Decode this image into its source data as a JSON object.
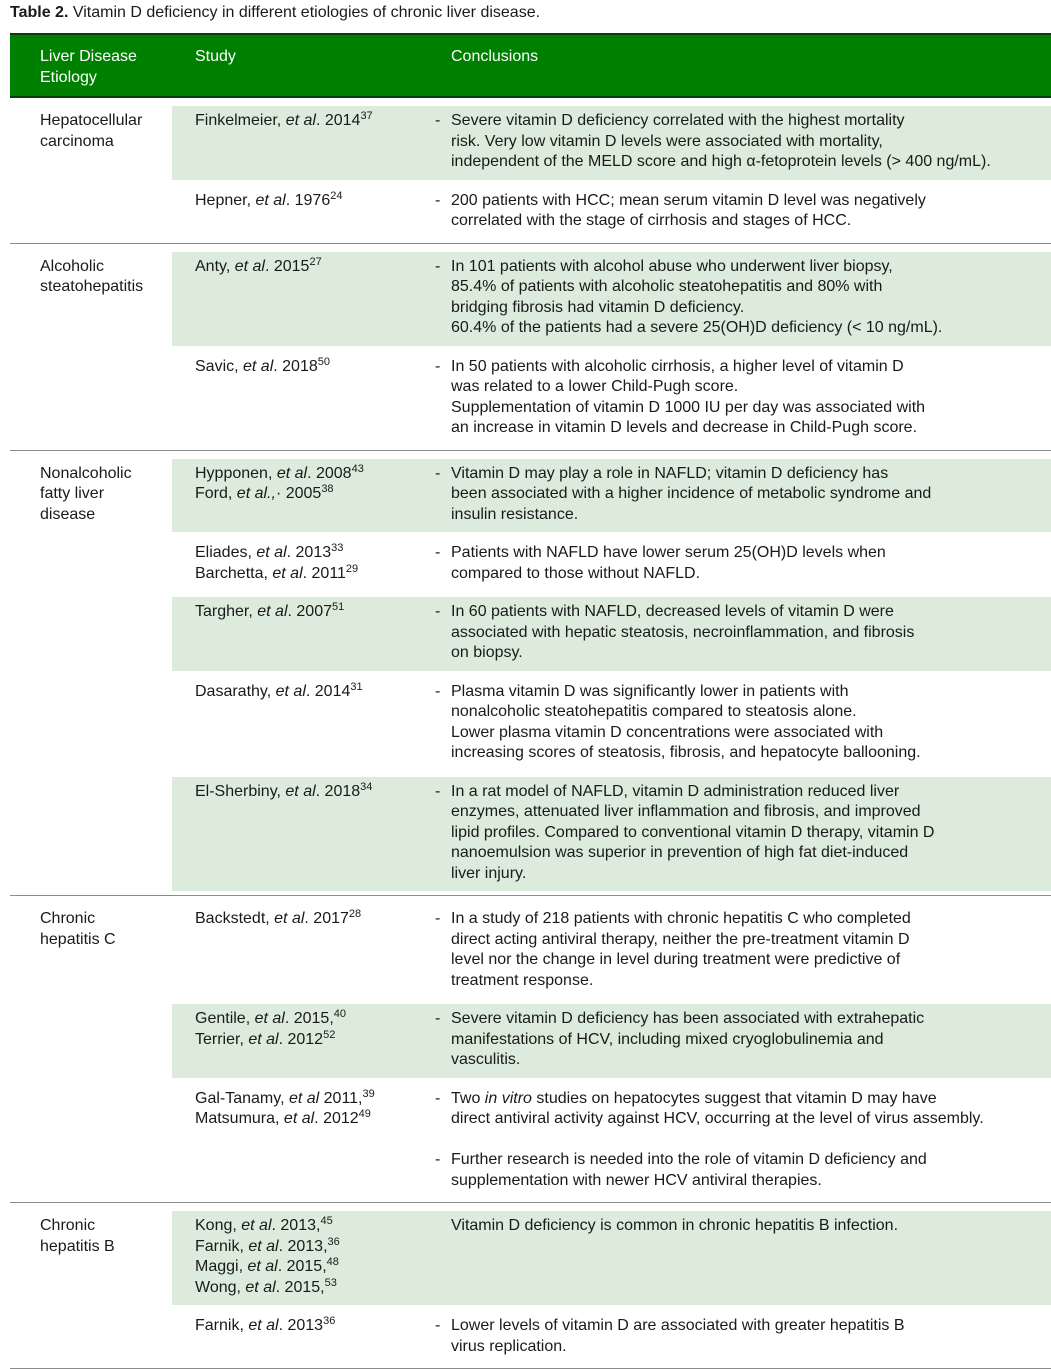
{
  "caption": {
    "label": "Table 2.",
    "text": " Vitamin D deficiency in different etiologies of chronic liver disease."
  },
  "header": {
    "etiology": [
      "Liver Disease",
      "Etiology"
    ],
    "study": "Study",
    "conclusions": "Conclusions"
  },
  "colors": {
    "header_bg": "#008000",
    "shade": "#dcebdc"
  },
  "groups": [
    {
      "etiology": [
        "Hepatocellular",
        "carcinoma"
      ],
      "rows": [
        {
          "shaded": true,
          "study": [
            [
              "Finkelmeier, ",
              {
                "i": "et al"
              },
              ". 2014",
              {
                "sup": "37"
              }
            ]
          ],
          "conclusions": [
            {
              "dash": true,
              "lines": [
                "Severe vitamin D deficiency correlated with the highest mortality",
                "risk. Very low vitamin D levels were associated with mortality,",
                "independent of the MELD score and high α-fetoprotein levels (> 400 ng/mL)."
              ]
            }
          ]
        },
        {
          "shaded": false,
          "study": [
            [
              "Hepner, ",
              {
                "i": "et al"
              },
              ". 1976",
              {
                "sup": "24"
              }
            ]
          ],
          "conclusions": [
            {
              "dash": true,
              "lines": [
                "200 patients with HCC; mean serum vitamin D level was negatively",
                "correlated with the stage of cirrhosis and stages of HCC."
              ]
            }
          ]
        }
      ]
    },
    {
      "etiology": [
        "Alcoholic",
        "steatohepatitis"
      ],
      "rows": [
        {
          "shaded": true,
          "study": [
            [
              "Anty, ",
              {
                "i": "et al"
              },
              ". 2015",
              {
                "sup": "27"
              }
            ]
          ],
          "conclusions": [
            {
              "dash": true,
              "lines": [
                "In 101 patients with alcohol abuse who underwent liver biopsy,",
                "85.4% of patients with alcoholic steatohepatitis and 80% with",
                "bridging fibrosis had vitamin D deficiency.",
                "60.4% of the patients had a severe 25(OH)D deficiency (< 10 ng/mL)."
              ]
            }
          ]
        },
        {
          "shaded": false,
          "study": [
            [
              "Savic, ",
              {
                "i": "et al"
              },
              ". 2018",
              {
                "sup": "50"
              }
            ]
          ],
          "conclusions": [
            {
              "dash": true,
              "lines": [
                "In 50 patients with alcoholic cirrhosis, a higher level of vitamin D",
                "was related to a lower Child-Pugh score.",
                "Supplementation of vitamin D 1000 IU per day was associated with",
                "an increase in vitamin D levels and decrease in Child-Pugh score."
              ]
            }
          ]
        }
      ]
    },
    {
      "etiology": [
        "Nonalcoholic",
        "fatty liver",
        "disease"
      ],
      "rows": [
        {
          "shaded": true,
          "study": [
            [
              "Hypponen, ",
              {
                "i": "et al"
              },
              ". 2008",
              {
                "sup": "43"
              }
            ],
            [
              "Ford, ",
              {
                "i": "et al.,"
              },
              "· 2005",
              {
                "sup": "38"
              }
            ]
          ],
          "conclusions": [
            {
              "dash": true,
              "lines": [
                "Vitamin D may play a role in NAFLD; vitamin D deficiency has",
                "been associated with a higher incidence of metabolic syndrome and",
                "insulin resistance."
              ]
            }
          ]
        },
        {
          "shaded": false,
          "study": [
            [
              "Eliades, ",
              {
                "i": "et al"
              },
              ". 2013",
              {
                "sup": "33"
              }
            ],
            [
              "Barchetta, ",
              {
                "i": "et al"
              },
              ". 2011",
              {
                "sup": "29"
              }
            ]
          ],
          "conclusions": [
            {
              "dash": true,
              "lines": [
                "Patients with NAFLD have lower serum 25(OH)D levels when",
                "compared to those without NAFLD."
              ]
            }
          ]
        },
        {
          "shaded": true,
          "study": [
            [
              "Targher, ",
              {
                "i": "et al"
              },
              ". 2007",
              {
                "sup": "51"
              }
            ]
          ],
          "conclusions": [
            {
              "dash": true,
              "lines": [
                "In 60 patients with NAFLD, decreased levels of vitamin D were",
                "associated with  hepatic steatosis, necroinflammation, and fibrosis",
                "on biopsy."
              ]
            }
          ]
        },
        {
          "shaded": false,
          "study": [
            [
              "Dasarathy, ",
              {
                "i": "et al"
              },
              ". 2014",
              {
                "sup": "31"
              }
            ]
          ],
          "conclusions": [
            {
              "dash": true,
              "lines": [
                "Plasma vitamin D was significantly lower in patients with",
                "nonalcoholic steatohepatitis compared to steatosis alone.",
                "Lower plasma vitamin D concentrations were associated with",
                "increasing scores of steatosis, fibrosis, and hepatocyte ballooning."
              ]
            }
          ]
        },
        {
          "shaded": true,
          "study": [
            [
              "El-Sherbiny, ",
              {
                "i": "et al"
              },
              ". 2018",
              {
                "sup": "34"
              }
            ]
          ],
          "conclusions": [
            {
              "dash": true,
              "lines": [
                "In a rat model of NAFLD, vitamin D administration reduced liver",
                "enzymes, attenuated liver inflammation and fibrosis, and improved",
                "lipid profiles.  Compared to conventional vitamin D therapy, vitamin D",
                "nanoemulsion was superior in prevention of high fat diet-induced",
                "liver injury."
              ]
            }
          ]
        }
      ]
    },
    {
      "etiology": [
        "Chronic",
        "hepatitis C"
      ],
      "rows": [
        {
          "shaded": false,
          "study": [
            [
              "Backstedt, ",
              {
                "i": "et al"
              },
              ". 2017",
              {
                "sup": "28"
              }
            ]
          ],
          "conclusions": [
            {
              "dash": true,
              "lines": [
                "In a study of 218 patients with chronic hepatitis C who completed",
                "direct acting antiviral therapy, neither the pre-treatment vitamin D",
                "level nor the change in level during treatment were predictive of",
                "treatment response."
              ]
            }
          ]
        },
        {
          "shaded": true,
          "study": [
            [
              "Gentile, ",
              {
                "i": "et al"
              },
              ". 2015,",
              {
                "sup": "40"
              }
            ],
            [
              "Terrier, ",
              {
                "i": "et al"
              },
              ". 2012",
              {
                "sup": "52"
              }
            ]
          ],
          "conclusions": [
            {
              "dash": true,
              "lines": [
                "Severe vitamin D deficiency has been associated with extrahepatic",
                "manifestations of HCV, including mixed cryoglobulinemia and",
                "vasculitis."
              ]
            }
          ]
        },
        {
          "shaded": false,
          "study": [
            [
              "Gal-Tanamy, ",
              {
                "i": "et al"
              },
              " 2011,",
              {
                "sup": "39"
              }
            ],
            [
              "Matsumura, ",
              {
                "i": "et al"
              },
              ". 2012",
              {
                "sup": "49"
              }
            ]
          ],
          "conclusions": [
            {
              "dash": true,
              "lines": [
                [
                  "Two ",
                  {
                    "i": "in vitro"
                  },
                  " studies on hepatocytes suggest that vitamin D may have"
                ],
                "direct antiviral activity against HCV, occurring at the level of virus assembly."
              ]
            },
            {
              "dash": true,
              "lines": [
                "Further research is needed into the role of vitamin D deficiency and",
                "supplementation with newer HCV antiviral therapies."
              ]
            }
          ]
        }
      ]
    },
    {
      "etiology": [
        "Chronic",
        "hepatitis B"
      ],
      "rows": [
        {
          "shaded": true,
          "study": [
            [
              "Kong, ",
              {
                "i": "et al"
              },
              ". 2013,",
              {
                "sup": "45"
              }
            ],
            [
              "Farnik, ",
              {
                "i": "et al"
              },
              ". 2013,",
              {
                "sup": "36"
              }
            ],
            [
              "Maggi, ",
              {
                "i": "et al"
              },
              ". 2015,",
              {
                "sup": "48"
              }
            ],
            [
              "Wong, ",
              {
                "i": "et al"
              },
              ". 2015,",
              {
                "sup": "53"
              }
            ]
          ],
          "conclusions": [
            {
              "dash": false,
              "lines": [
                "Vitamin D deficiency is common in chronic hepatitis B infection."
              ]
            }
          ]
        },
        {
          "shaded": false,
          "study": [
            [
              "Farnik, ",
              {
                "i": "et al"
              },
              ". 2013",
              {
                "sup": "36"
              }
            ]
          ],
          "conclusions": [
            {
              "dash": true,
              "lines": [
                "Lower levels of vitamin D are associated with greater hepatitis B",
                "virus replication."
              ]
            }
          ]
        }
      ]
    }
  ]
}
